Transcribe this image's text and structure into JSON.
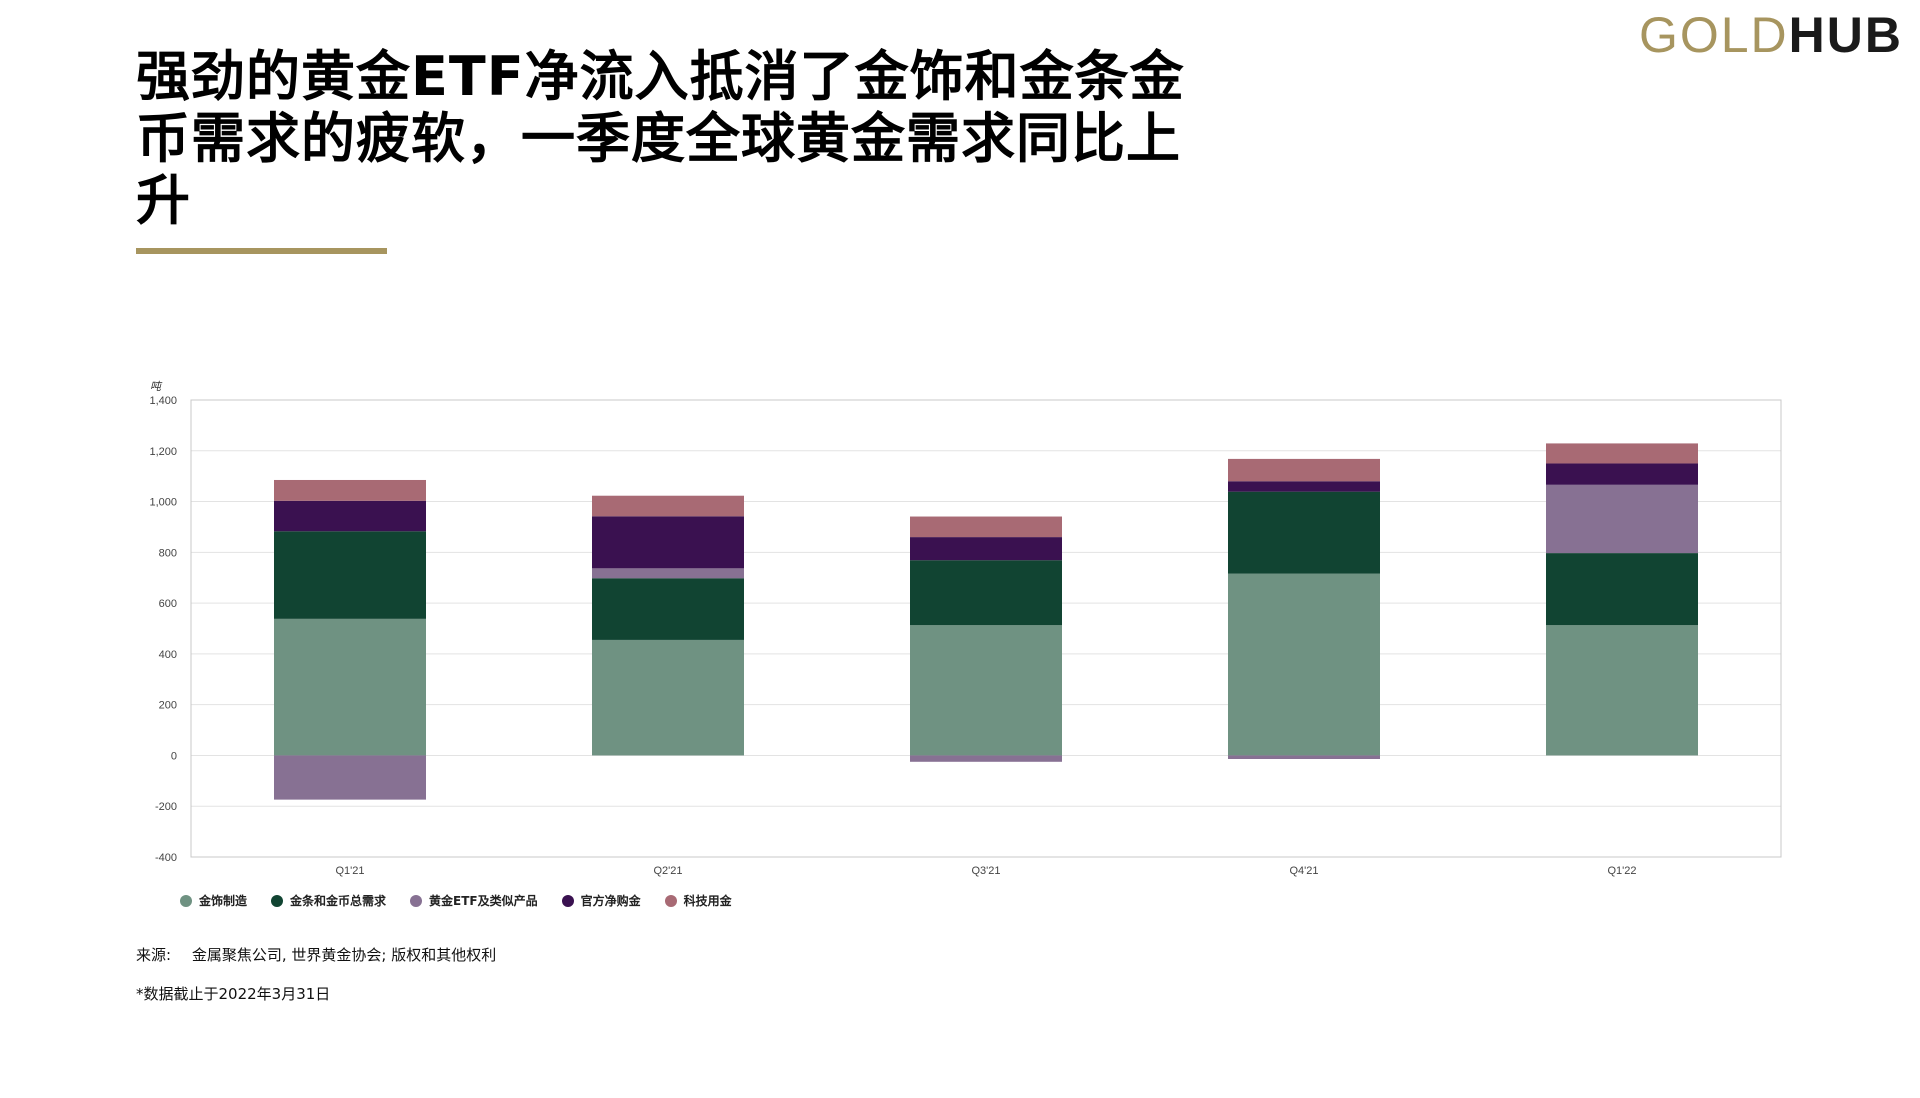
{
  "logo": {
    "part1": "GOLD",
    "part2": "HUB"
  },
  "title": "强劲的黄金ETF净流入抵消了金饰和金条金币需求的疲软，一季度全球黄金需求同比上升",
  "chart_data": {
    "type": "bar",
    "stacked": true,
    "title": "",
    "ylabel": "吨",
    "xlabel": "",
    "ylim": [
      -400,
      1400
    ],
    "yticks": [
      -400,
      -200,
      0,
      200,
      400,
      600,
      800,
      1000,
      1200,
      1400
    ],
    "ytick_labels": [
      "-400",
      "-200",
      "0",
      "200",
      "400",
      "600",
      "800",
      "1,000",
      "1,200",
      "1,400"
    ],
    "categories": [
      "Q1'21",
      "Q2'21",
      "Q3'21",
      "Q4'21",
      "Q1'22"
    ],
    "grid": true,
    "legend_position": "bottom-left",
    "series": [
      {
        "name": "金饰制造",
        "color": "#6f9282",
        "values": [
          538,
          455,
          513,
          716,
          513
        ]
      },
      {
        "name": "金条和金币总需求",
        "color": "#114432",
        "values": [
          345,
          243,
          256,
          323,
          284
        ]
      },
      {
        "name": "黄金ETF及类似产品",
        "color": "#877193",
        "values": [
          -174,
          39,
          -25,
          -14,
          269
        ]
      },
      {
        "name": "官方净购金",
        "color": "#3a1150",
        "values": [
          120,
          205,
          91,
          41,
          84
        ]
      },
      {
        "name": "科技用金",
        "color": "#a86a74",
        "values": [
          82,
          81,
          81,
          88,
          79
        ]
      }
    ]
  },
  "source": {
    "label": "来源:",
    "text": "金属聚焦公司, 世界黄金协会; 版权和其他权利"
  },
  "footnote": "*数据截止于2022年3月31日"
}
